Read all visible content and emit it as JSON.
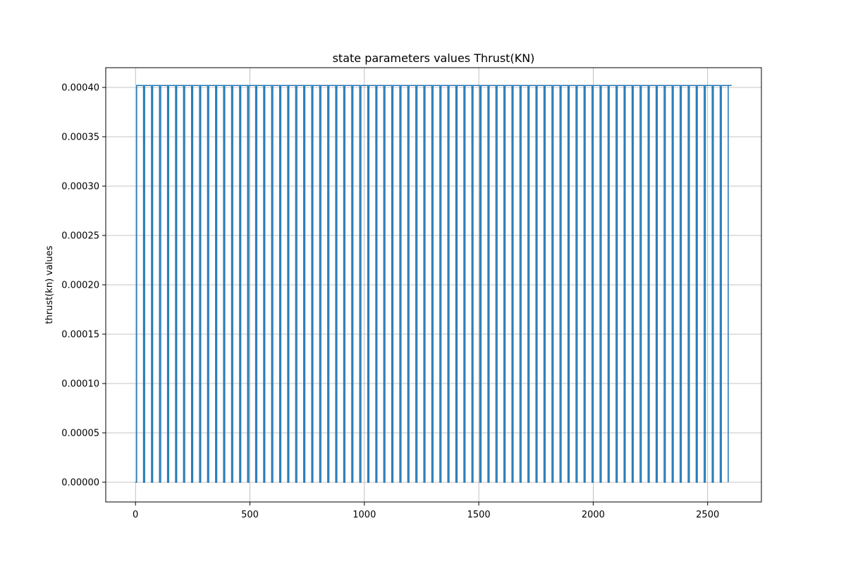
{
  "chart_data": {
    "type": "line",
    "title": "state parameters values Thrust(KN)",
    "xlabel": "",
    "ylabel": "thrust(kn) values",
    "xlim": [
      -130,
      2735
    ],
    "ylim": [
      -2e-05,
      0.00042
    ],
    "grid": true,
    "color": "#1f77b4",
    "x_ticks": [
      0,
      500,
      1000,
      1500,
      2000,
      2500
    ],
    "x_tick_labels": [
      "0",
      "500",
      "1000",
      "1500",
      "2000",
      "2500"
    ],
    "y_ticks": [
      0,
      5e-05,
      0.0001,
      0.00015,
      0.0002,
      0.00025,
      0.0003,
      0.00035,
      0.0004
    ],
    "y_tick_labels": [
      "0.00000",
      "0.00005",
      "0.00010",
      "0.00015",
      "0.00020",
      "0.00025",
      "0.00030",
      "0.00035",
      "0.00040"
    ],
    "series": [
      {
        "signal": "pulse-train",
        "low": 0,
        "high": 0.000402,
        "rise_x": [
          5,
          40,
          75,
          110,
          145,
          180,
          215,
          250,
          285,
          320,
          355,
          390,
          425,
          460,
          495,
          530,
          565,
          600,
          635,
          670,
          705,
          740,
          775,
          810,
          845,
          880,
          915,
          950,
          985,
          1020,
          1055,
          1090,
          1125,
          1160,
          1195,
          1230,
          1265,
          1300,
          1335,
          1370,
          1405,
          1440,
          1475,
          1510,
          1545,
          1580,
          1615,
          1650,
          1685,
          1720,
          1755,
          1790,
          1825,
          1860,
          1895,
          1930,
          1965,
          2000,
          2035,
          2070,
          2105,
          2140,
          2175,
          2210,
          2245,
          2280,
          2315,
          2350,
          2385,
          2420,
          2455,
          2490,
          2525,
          2560
        ],
        "fall_x": [
          35,
          70,
          105,
          140,
          175,
          210,
          245,
          280,
          315,
          350,
          385,
          420,
          455,
          490,
          525,
          560,
          595,
          630,
          665,
          700,
          735,
          770,
          805,
          840,
          875,
          910,
          945,
          980,
          1015,
          1050,
          1085,
          1120,
          1155,
          1190,
          1225,
          1260,
          1295,
          1330,
          1365,
          1400,
          1435,
          1470,
          1505,
          1540,
          1575,
          1610,
          1645,
          1680,
          1715,
          1750,
          1785,
          1820,
          1855,
          1890,
          1925,
          1960,
          1995,
          2030,
          2065,
          2100,
          2135,
          2170,
          2205,
          2240,
          2275,
          2310,
          2345,
          2380,
          2415,
          2450,
          2485,
          2520,
          2555,
          2590
        ],
        "x_start": 0,
        "x_end": 2605
      }
    ]
  }
}
